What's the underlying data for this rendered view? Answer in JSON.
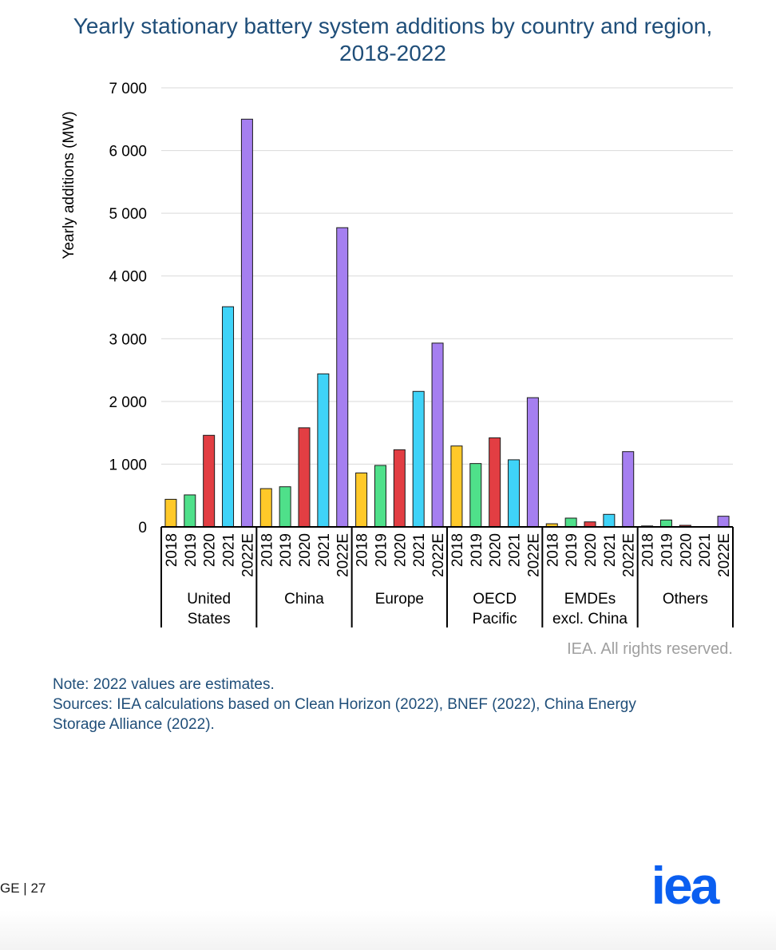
{
  "colors": {
    "title": "#1f4e79",
    "note": "#1f4e79",
    "copyright": "#a0a0a0",
    "logo": "#0a5ef0",
    "series": [
      "#ffc929",
      "#4fe08a",
      "#e23e43",
      "#3fd3f8",
      "#a57ff0"
    ]
  },
  "chart_data": {
    "type": "bar",
    "title": "Yearly stationary battery system additions by country and region, 2018-2022",
    "title_lines": [
      "Yearly stationary battery system additions by country and region,",
      "2018-2022"
    ],
    "ylabel": "Yearly additions (MW)",
    "xlabel": "",
    "ylim": [
      0,
      7000
    ],
    "yticks": [
      0,
      1000,
      2000,
      3000,
      4000,
      5000,
      6000,
      7000
    ],
    "ytick_labels": [
      "0",
      "1 000",
      "2 000",
      "3 000",
      "4 000",
      "5 000",
      "6 000",
      "7 000"
    ],
    "grid": true,
    "legend": "none",
    "years": [
      "2018",
      "2019",
      "2020",
      "2021",
      "2022E"
    ],
    "groups": [
      {
        "label_lines": [
          "United",
          "States"
        ],
        "values": [
          440,
          510,
          1460,
          3510,
          6500
        ]
      },
      {
        "label_lines": [
          "China"
        ],
        "values": [
          610,
          640,
          1580,
          2440,
          4770
        ]
      },
      {
        "label_lines": [
          "Europe"
        ],
        "values": [
          860,
          980,
          1230,
          2160,
          2930
        ]
      },
      {
        "label_lines": [
          "OECD",
          "Pacific"
        ],
        "values": [
          1290,
          1010,
          1420,
          1070,
          2060
        ]
      },
      {
        "label_lines": [
          "EMDEs",
          "excl. China"
        ],
        "values": [
          50,
          140,
          80,
          200,
          1200
        ]
      },
      {
        "label_lines": [
          "Others"
        ],
        "values": [
          15,
          110,
          25,
          0,
          170
        ]
      }
    ]
  },
  "copyright": "IEA. All rights reserved.",
  "notes": {
    "line1": "Note: 2022 values are estimates.",
    "line2": "Sources: IEA calculations based on Clean Horizon (2022), BNEF (2022), China Energy",
    "line3": "Storage Alliance (2022)."
  },
  "footer": {
    "page_prefix": "GE",
    "separator": "|",
    "page_number": "27",
    "logo_text": "iea"
  }
}
